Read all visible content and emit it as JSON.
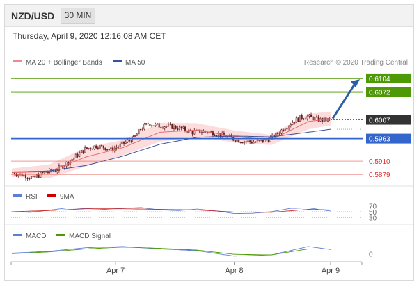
{
  "header": {
    "pair": "NZD/USD",
    "timeframe": "30 MIN",
    "datetime": "Thursday, April 9, 2020 12:16:08 AM CET"
  },
  "legend": {
    "ma20_bb": "MA 20 + Bollinger Bands",
    "ma50": "MA 50",
    "credit": "Research © 2020 Trading Central"
  },
  "colors": {
    "green_level": "#4e9a06",
    "blue_level": "#3366cc",
    "red_level": "#e8635a",
    "candle": "#6b1d1d",
    "bb_fill": "#fbd6d6",
    "ma20": "#e86a6a",
    "ma50": "#3b4f9a",
    "current": "#333333",
    "arrow": "#2b5ea7"
  },
  "chart_data": [
    {
      "type": "candlestick",
      "title": "NZD/USD 30 MIN",
      "x_ticks": [
        "Apr 7",
        "Apr 8",
        "Apr 9"
      ],
      "ylim": [
        0.5855,
        0.6125
      ],
      "levels": [
        {
          "value": 0.6104,
          "label": "0.6104",
          "kind": "resistance",
          "color": "#4e9a06"
        },
        {
          "value": 0.6072,
          "label": "0.6072",
          "kind": "resistance",
          "color": "#4e9a06"
        },
        {
          "value": 0.6007,
          "label": "0.6007",
          "kind": "current",
          "color": "#333333"
        },
        {
          "value": 0.5963,
          "label": "0.5963",
          "kind": "pivot",
          "color": "#3366cc"
        },
        {
          "value": 0.591,
          "label": "0.5910",
          "kind": "support",
          "color": "#e8635a"
        },
        {
          "value": 0.5879,
          "label": "0.5879",
          "kind": "support",
          "color": "#e8635a"
        }
      ],
      "price_path": [
        [
          0,
          0.5885
        ],
        [
          6,
          0.5878
        ],
        [
          12,
          0.587
        ],
        [
          18,
          0.5884
        ],
        [
          24,
          0.5888
        ],
        [
          30,
          0.5905
        ],
        [
          36,
          0.5925
        ],
        [
          40,
          0.5938
        ],
        [
          46,
          0.5946
        ],
        [
          50,
          0.5943
        ],
        [
          54,
          0.5937
        ],
        [
          58,
          0.5945
        ],
        [
          62,
          0.5955
        ],
        [
          66,
          0.5962
        ],
        [
          70,
          0.5985
        ],
        [
          74,
          0.5998
        ],
        [
          80,
          0.5993
        ],
        [
          86,
          0.5992
        ],
        [
          92,
          0.5986
        ],
        [
          98,
          0.5978
        ],
        [
          104,
          0.598
        ],
        [
          110,
          0.5976
        ],
        [
          116,
          0.5968
        ],
        [
          120,
          0.5962
        ],
        [
          124,
          0.5958
        ],
        [
          128,
          0.5956
        ],
        [
          132,
          0.5955
        ],
        [
          136,
          0.5958
        ],
        [
          140,
          0.5963
        ],
        [
          144,
          0.5975
        ],
        [
          148,
          0.599
        ],
        [
          152,
          0.6002
        ],
        [
          156,
          0.6012
        ],
        [
          160,
          0.6015
        ],
        [
          164,
          0.601
        ],
        [
          168,
          0.6006
        ],
        [
          172,
          0.6007
        ]
      ],
      "ma20": [
        [
          0,
          0.5883
        ],
        [
          20,
          0.5886
        ],
        [
          40,
          0.592
        ],
        [
          60,
          0.5942
        ],
        [
          80,
          0.5978
        ],
        [
          100,
          0.5983
        ],
        [
          120,
          0.5968
        ],
        [
          140,
          0.596
        ],
        [
          160,
          0.6003
        ],
        [
          172,
          0.601
        ]
      ],
      "ma50": [
        [
          0,
          0.5885
        ],
        [
          20,
          0.5887
        ],
        [
          40,
          0.59
        ],
        [
          60,
          0.5922
        ],
        [
          80,
          0.595
        ],
        [
          100,
          0.5966
        ],
        [
          120,
          0.5969
        ],
        [
          140,
          0.5967
        ],
        [
          160,
          0.5978
        ],
        [
          172,
          0.5985
        ]
      ],
      "bb_halfwidth": [
        [
          0,
          0.001
        ],
        [
          20,
          0.0016
        ],
        [
          40,
          0.0022
        ],
        [
          60,
          0.0018
        ],
        [
          80,
          0.0022
        ],
        [
          100,
          0.0016
        ],
        [
          120,
          0.0014
        ],
        [
          140,
          0.0012
        ],
        [
          160,
          0.0018
        ],
        [
          172,
          0.0016
        ]
      ],
      "x_tick_index": {
        "Apr 7": 56,
        "Apr 8": 120,
        "Apr 9": 172
      }
    },
    {
      "type": "line",
      "title": "RSI",
      "legend": [
        "RSI",
        "9MA"
      ],
      "y_ticks": [
        "70",
        "50",
        "30"
      ],
      "ylim": [
        20,
        80
      ],
      "rsi": [
        [
          0,
          50
        ],
        [
          10,
          48
        ],
        [
          20,
          55
        ],
        [
          30,
          63
        ],
        [
          40,
          61
        ],
        [
          50,
          58
        ],
        [
          60,
          62
        ],
        [
          70,
          64
        ],
        [
          80,
          56
        ],
        [
          90,
          54
        ],
        [
          100,
          59
        ],
        [
          110,
          53
        ],
        [
          120,
          44
        ],
        [
          130,
          45
        ],
        [
          140,
          50
        ],
        [
          150,
          61
        ],
        [
          160,
          63
        ],
        [
          172,
          52
        ]
      ],
      "ma9": [
        [
          0,
          50
        ],
        [
          20,
          54
        ],
        [
          40,
          60
        ],
        [
          60,
          60
        ],
        [
          80,
          58
        ],
        [
          100,
          56
        ],
        [
          120,
          49
        ],
        [
          140,
          48
        ],
        [
          160,
          58
        ],
        [
          172,
          56
        ]
      ]
    },
    {
      "type": "line",
      "title": "MACD",
      "legend": [
        "MACD",
        "MACD Signal"
      ],
      "y_ticks": [
        "0"
      ],
      "ylim": [
        -0.001,
        0.002
      ],
      "macd": [
        [
          0,
          0.0001
        ],
        [
          20,
          0.0004
        ],
        [
          40,
          0.001
        ],
        [
          60,
          0.0012
        ],
        [
          80,
          0.0008
        ],
        [
          100,
          0.0005
        ],
        [
          120,
          -0.0004
        ],
        [
          140,
          -0.0002
        ],
        [
          160,
          0.0012
        ],
        [
          172,
          0.0007
        ]
      ],
      "signal": [
        [
          0,
          0.0
        ],
        [
          20,
          0.0003
        ],
        [
          40,
          0.0008
        ],
        [
          60,
          0.0011
        ],
        [
          80,
          0.0009
        ],
        [
          100,
          0.0006
        ],
        [
          120,
          -0.0001
        ],
        [
          140,
          -0.0002
        ],
        [
          160,
          0.0008
        ],
        [
          172,
          0.0008
        ]
      ]
    }
  ]
}
